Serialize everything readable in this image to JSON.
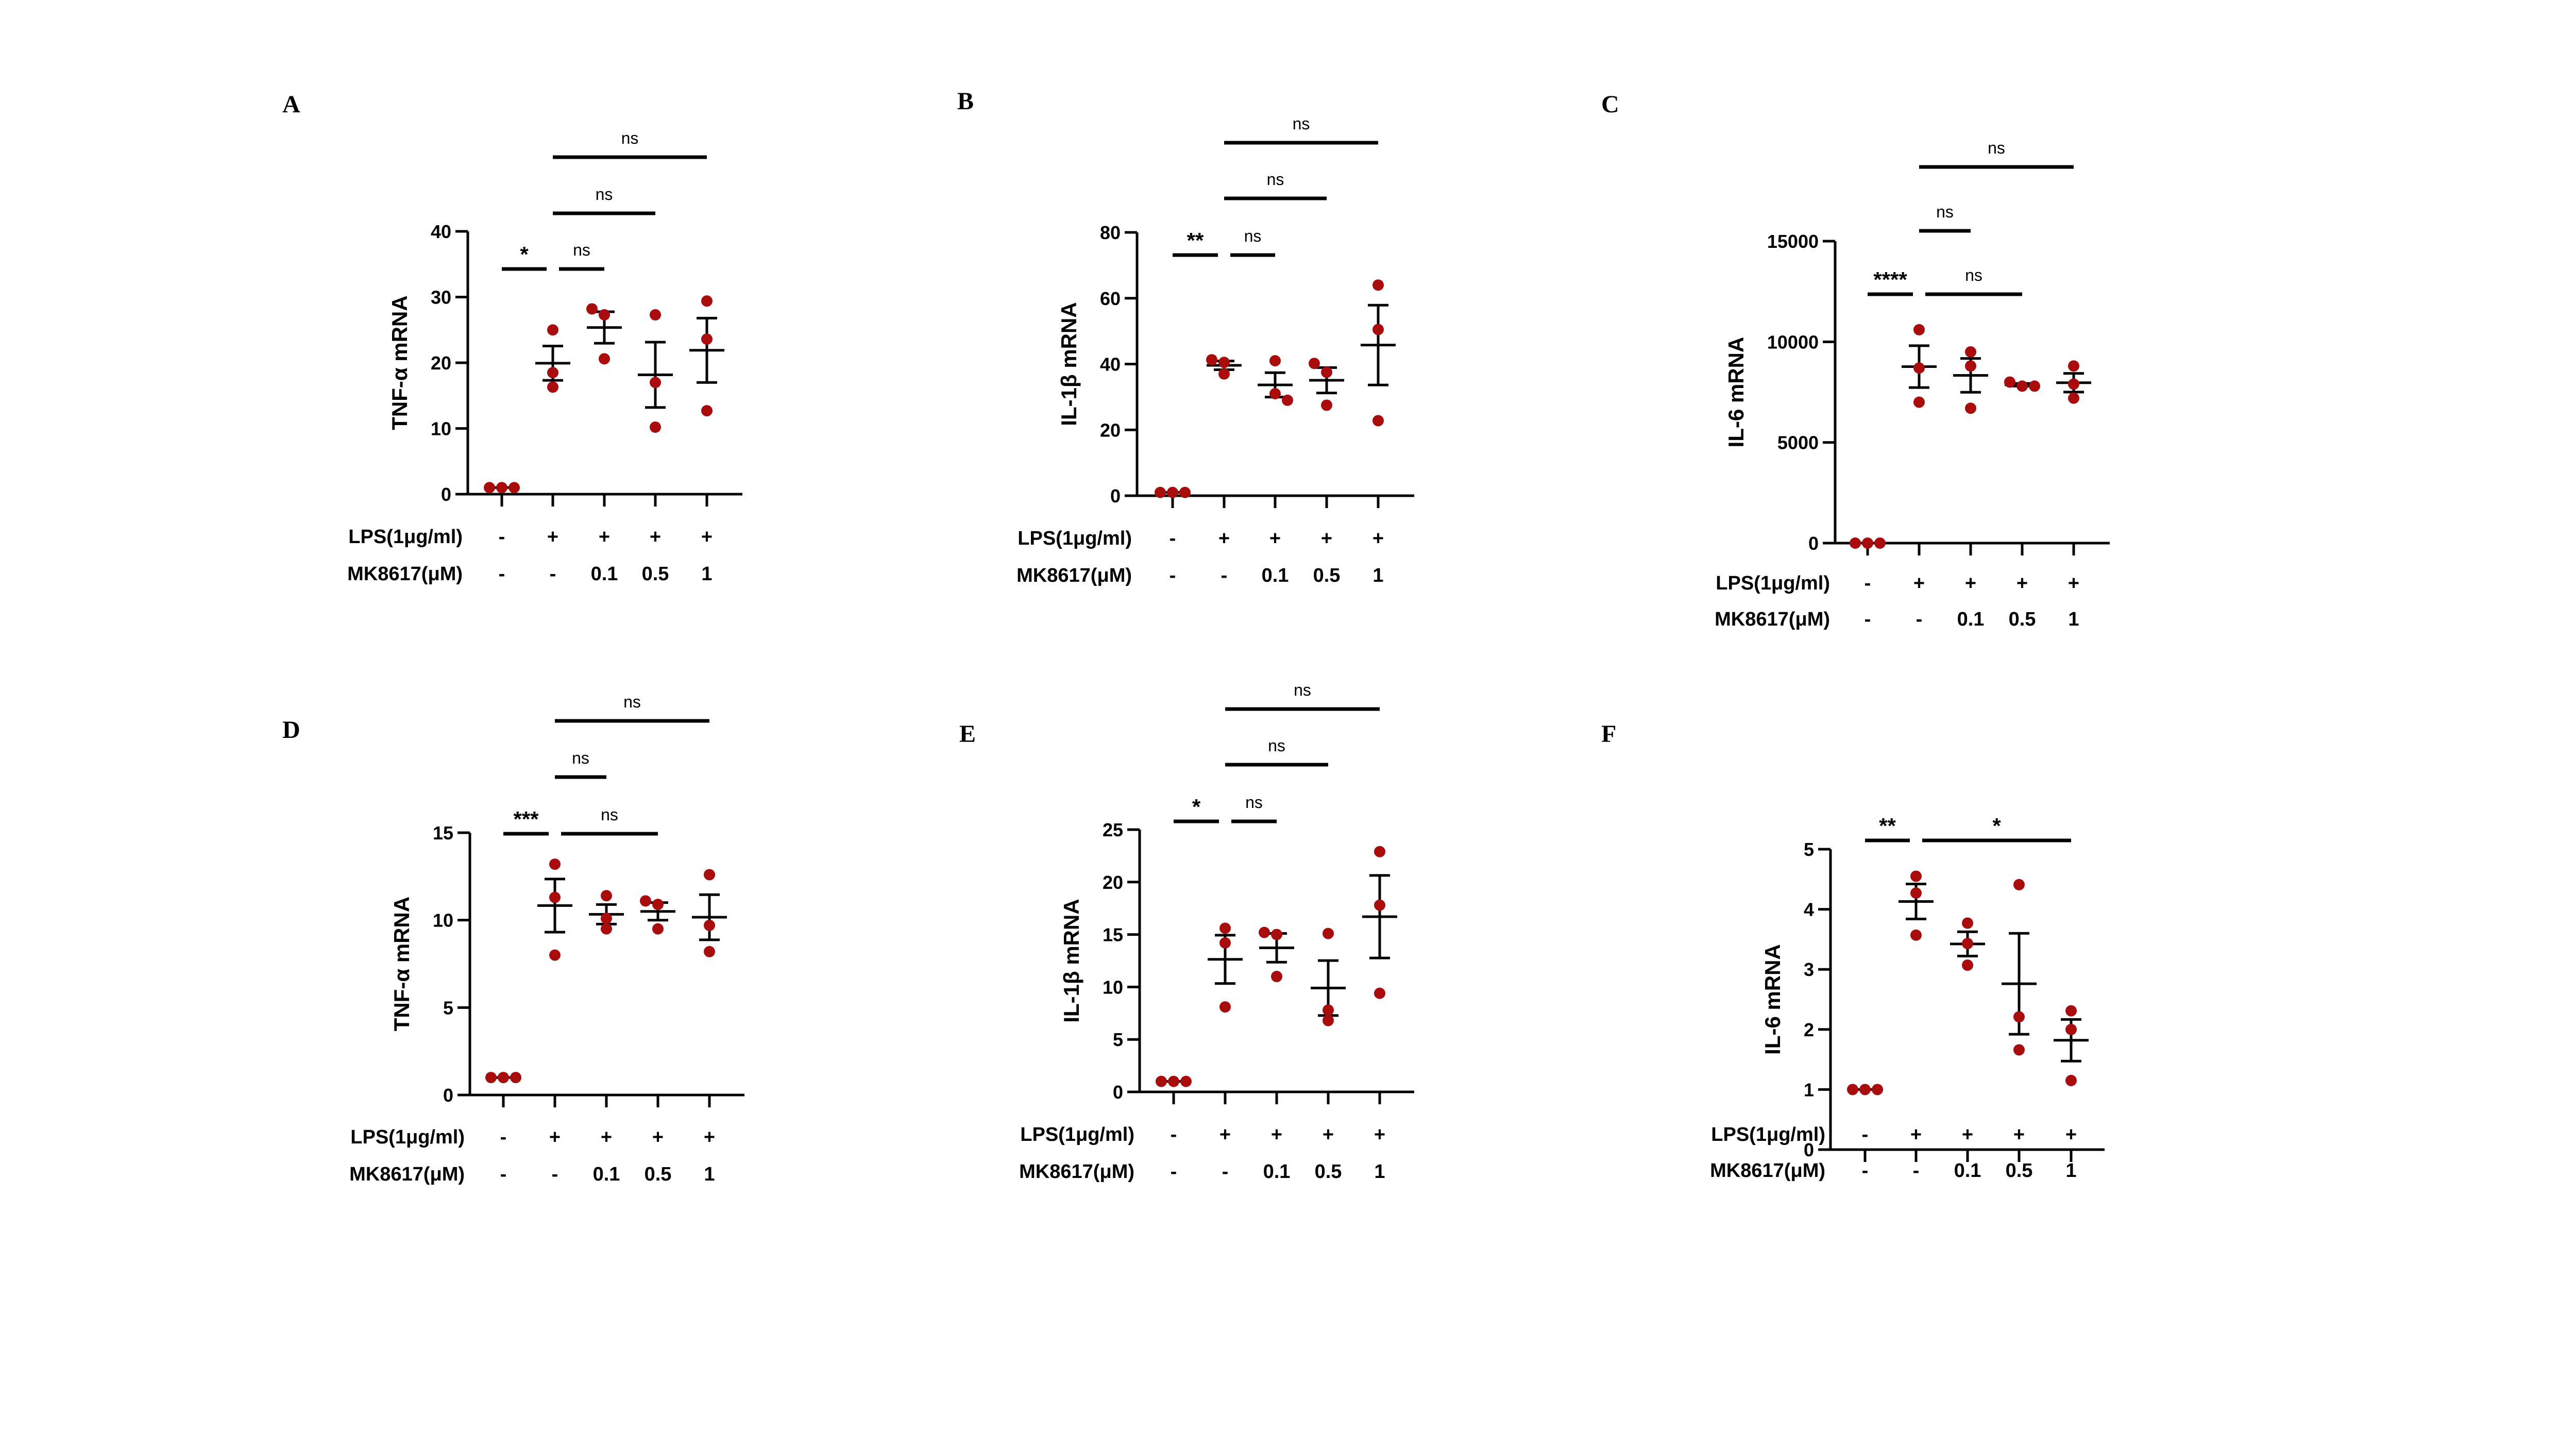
{
  "chart_data": [
    {
      "panel": "A",
      "type": "scatter",
      "ylabel": "TNF-α mRNA",
      "ylim": [
        0,
        40
      ],
      "yticks": [
        0,
        10,
        20,
        30,
        40
      ],
      "groups": [
        [
          1,
          1,
          1
        ],
        [
          25,
          18.5,
          16.3
        ],
        [
          28.2,
          27.3,
          20.6
        ],
        [
          27.3,
          17,
          10.2
        ],
        [
          29.4,
          23.6,
          12.7
        ]
      ],
      "lps": [
        "-",
        "+",
        "+",
        "+",
        "+"
      ],
      "mk": [
        "-",
        "-",
        "0.1",
        "0.5",
        "1"
      ],
      "brackets": [
        {
          "from": 0,
          "to": 1,
          "label": "*"
        },
        {
          "from": 1,
          "to": 2,
          "label": "ns"
        },
        {
          "from": 1,
          "to": 3,
          "label": "ns"
        },
        {
          "from": 1,
          "to": 4,
          "label": "ns"
        }
      ]
    },
    {
      "panel": "B",
      "type": "scatter",
      "ylabel": "IL-1β mRNA",
      "ylim": [
        0,
        80
      ],
      "yticks": [
        0,
        20,
        40,
        60,
        80
      ],
      "groups": [
        [
          1,
          1,
          1
        ],
        [
          41.3,
          40.5,
          37
        ],
        [
          41,
          31,
          29
        ],
        [
          40.2,
          37.5,
          27.5
        ],
        [
          64,
          50.5,
          22.8
        ]
      ],
      "lps": [
        "-",
        "+",
        "+",
        "+",
        "+"
      ],
      "mk": [
        "-",
        "-",
        "0.1",
        "0.5",
        "1"
      ],
      "brackets": [
        {
          "from": 0,
          "to": 1,
          "label": "**"
        },
        {
          "from": 1,
          "to": 2,
          "label": "ns"
        },
        {
          "from": 1,
          "to": 3,
          "label": "ns"
        },
        {
          "from": 1,
          "to": 4,
          "label": "ns"
        }
      ]
    },
    {
      "panel": "C",
      "type": "scatter",
      "ylabel": "IL-6 mRNA",
      "ylim": [
        0,
        15000
      ],
      "yticks": [
        0,
        5000,
        10000,
        15000
      ],
      "groups": [
        [
          0,
          0,
          0
        ],
        [
          10600,
          8700,
          7000
        ],
        [
          9500,
          8800,
          6700
        ],
        [
          7800,
          8000,
          7800
        ],
        [
          8800,
          7900,
          7200
        ]
      ],
      "lps": [
        "-",
        "+",
        "+",
        "+",
        "+"
      ],
      "mk": [
        "-",
        "-",
        "0.1",
        "0.5",
        "1"
      ],
      "brackets": [
        {
          "from": 0,
          "to": 1,
          "label": "****"
        },
        {
          "from": 1,
          "to": 3,
          "label": "ns"
        },
        {
          "from": 1,
          "to": 2,
          "label": "ns"
        },
        {
          "from": 1,
          "to": 4,
          "label": "ns"
        }
      ]
    },
    {
      "panel": "D",
      "type": "scatter",
      "ylabel": "TNF-α mRNA",
      "ylim": [
        0,
        15
      ],
      "yticks": [
        0,
        5,
        10,
        15
      ],
      "groups": [
        [
          1,
          1,
          1
        ],
        [
          13.2,
          11.3,
          8
        ],
        [
          11.4,
          10.1,
          9.5
        ],
        [
          11.1,
          10.9,
          9.5
        ],
        [
          12.6,
          9.7,
          8.2
        ]
      ],
      "lps": [
        "-",
        "+",
        "+",
        "+",
        "+"
      ],
      "mk": [
        "-",
        "-",
        "0.1",
        "0.5",
        "1"
      ],
      "brackets": [
        {
          "from": 0,
          "to": 1,
          "label": "***"
        },
        {
          "from": 1,
          "to": 3,
          "label": "ns"
        },
        {
          "from": 1,
          "to": 2,
          "label": "ns"
        },
        {
          "from": 1,
          "to": 4,
          "label": "ns"
        }
      ]
    },
    {
      "panel": "E",
      "type": "scatter",
      "ylabel": "IL-1β mRNA",
      "ylim": [
        0,
        25
      ],
      "yticks": [
        0,
        5,
        10,
        15,
        20,
        25
      ],
      "groups": [
        [
          1,
          1,
          1
        ],
        [
          15.6,
          14.2,
          8.1
        ],
        [
          15.2,
          15,
          11
        ],
        [
          15.1,
          7.8,
          6.8
        ],
        [
          22.9,
          17.8,
          9.4
        ]
      ],
      "lps": [
        "-",
        "+",
        "+",
        "+",
        "+"
      ],
      "mk": [
        "-",
        "-",
        "0.1",
        "0.5",
        "1"
      ],
      "brackets": [
        {
          "from": 0,
          "to": 1,
          "label": "*"
        },
        {
          "from": 1,
          "to": 2,
          "label": "ns"
        },
        {
          "from": 1,
          "to": 3,
          "label": "ns"
        },
        {
          "from": 1,
          "to": 4,
          "label": "ns"
        }
      ]
    },
    {
      "panel": "F",
      "type": "scatter",
      "ylabel": "IL-6 mRNA",
      "ylim": [
        0,
        5
      ],
      "yticks": [
        0,
        1,
        2,
        3,
        4,
        5
      ],
      "groups": [
        [
          1,
          1,
          1
        ],
        [
          4.55,
          4.27,
          3.57
        ],
        [
          3.77,
          3.43,
          3.07
        ],
        [
          4.41,
          2.21,
          1.66
        ],
        [
          2.31,
          2.0,
          1.15
        ]
      ],
      "lps": [
        "-",
        "+",
        "+",
        "+",
        "+"
      ],
      "mk": [
        "-",
        "-",
        "0.1",
        "0.5",
        "1"
      ],
      "brackets": [
        {
          "from": 0,
          "to": 1,
          "label": "**"
        },
        {
          "from": 1,
          "to": 4,
          "label": "*"
        }
      ]
    }
  ],
  "row_labels": {
    "lps": "LPS(1μg/ml)",
    "mk": "MK8617(μM)"
  },
  "error_bars": "mean ± SEM",
  "colors": {
    "points": "#a80c0c",
    "lines": "#000000"
  }
}
